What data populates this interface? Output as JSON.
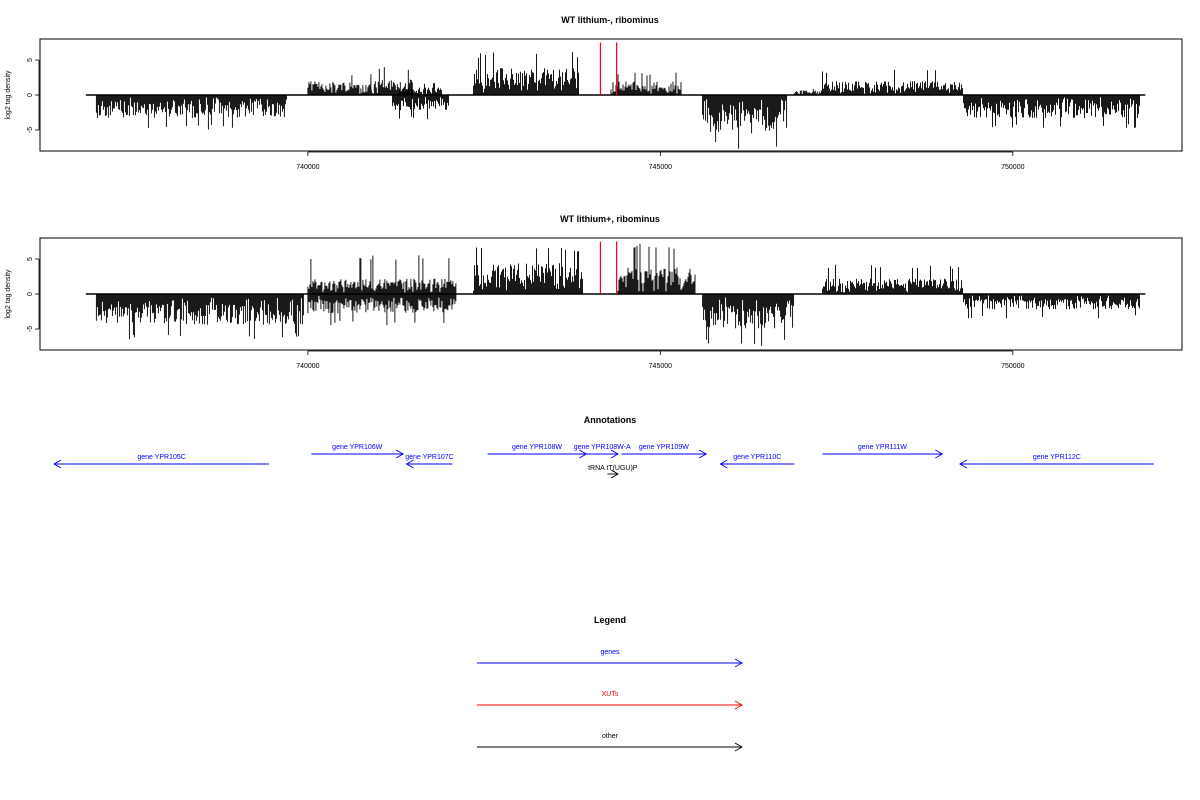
{
  "colors": {
    "gene": "#0000ff",
    "xut": "#ff0000",
    "other": "#000000",
    "signal": "#000000",
    "axis": "#000000"
  },
  "chart_data": [
    {
      "type": "bar",
      "title": "WT lithium-, ribominus",
      "ylabel": "log2 tag density",
      "xlim": [
        736200,
        752400
      ],
      "ylim": [
        -8,
        8
      ],
      "x_ticks": [
        740000,
        745000,
        750000
      ],
      "y_ticks": [
        -5,
        0,
        5
      ],
      "grid": false,
      "note": "dense per-position stranded signal; positive = forward strand, negative = reverse strand",
      "segments": [
        {
          "start": 737000,
          "end": 739700,
          "strand": "minus",
          "typical": 3.0,
          "max": 5.0
        },
        {
          "start": 740000,
          "end": 740900,
          "strand": "plus",
          "typical": 1.8,
          "max": 3.2
        },
        {
          "start": 740900,
          "end": 741500,
          "strand": "plus",
          "typical": 2.0,
          "max": 4.2
        },
        {
          "start": 741200,
          "end": 742000,
          "strand": "minus",
          "typical": 2.0,
          "max": 3.5
        },
        {
          "start": 741300,
          "end": 741900,
          "strand": "plus",
          "typical": 1.0,
          "max": 1.8
        },
        {
          "start": 742350,
          "end": 743850,
          "strand": "plus",
          "typical": 3.5,
          "max": 6.2
        },
        {
          "start": 744300,
          "end": 745300,
          "strand": "plus",
          "typical": 1.8,
          "max": 3.2
        },
        {
          "start": 745600,
          "end": 746800,
          "strand": "minus",
          "typical": 5.0,
          "max": 7.8
        },
        {
          "start": 746900,
          "end": 747300,
          "strand": "plus",
          "typical": 0.6,
          "max": 1.0
        },
        {
          "start": 747300,
          "end": 749300,
          "strand": "plus",
          "typical": 1.8,
          "max": 3.6
        },
        {
          "start": 749300,
          "end": 751800,
          "strand": "minus",
          "typical": 3.0,
          "max": 4.8
        }
      ],
      "xut_marks": [
        744150,
        744380
      ],
      "xut_height": 7.5
    },
    {
      "type": "bar",
      "title": "WT lithium+, ribominus",
      "ylabel": "log2 tag density",
      "xlim": [
        736200,
        752400
      ],
      "ylim": [
        -8,
        8
      ],
      "x_ticks": [
        740000,
        745000,
        750000
      ],
      "y_ticks": [
        -5,
        0,
        5
      ],
      "grid": false,
      "note": "dense per-position stranded signal; positive = forward strand, negative = reverse strand",
      "segments": [
        {
          "start": 737000,
          "end": 739950,
          "strand": "minus",
          "typical": 4.0,
          "max": 6.5
        },
        {
          "start": 740000,
          "end": 742100,
          "strand": "plus",
          "typical": 2.0,
          "max": 5.8
        },
        {
          "start": 740000,
          "end": 742100,
          "strand": "minus",
          "typical": 2.5,
          "max": 4.5
        },
        {
          "start": 742350,
          "end": 743900,
          "strand": "plus",
          "typical": 4.0,
          "max": 6.8
        },
        {
          "start": 744400,
          "end": 745500,
          "strand": "plus",
          "typical": 3.5,
          "max": 7.2
        },
        {
          "start": 745600,
          "end": 746900,
          "strand": "minus",
          "typical": 4.5,
          "max": 7.5
        },
        {
          "start": 747300,
          "end": 749300,
          "strand": "plus",
          "typical": 2.0,
          "max": 4.2
        },
        {
          "start": 749300,
          "end": 751800,
          "strand": "minus",
          "typical": 2.0,
          "max": 3.5
        }
      ],
      "xut_marks": [
        744150,
        744380
      ],
      "xut_height": 7.5
    }
  ],
  "annotations": {
    "title": "Annotations",
    "features": [
      {
        "label": "gene YPR105C",
        "kind": "gene",
        "start": 736400,
        "end": 739450,
        "strand": "minus",
        "row": 1
      },
      {
        "label": "gene YPR106W",
        "kind": "gene",
        "start": 740050,
        "end": 741350,
        "strand": "plus",
        "row": 0
      },
      {
        "label": "gene YPR107C",
        "kind": "gene",
        "start": 741400,
        "end": 742050,
        "strand": "minus",
        "row": 1
      },
      {
        "label": "gene YPR108W",
        "kind": "gene",
        "start": 742550,
        "end": 743950,
        "strand": "plus",
        "row": 0
      },
      {
        "label": "gene YPR108W-A",
        "kind": "gene",
        "start": 743950,
        "end": 744400,
        "strand": "plus",
        "row": 0
      },
      {
        "label": "tRNA tT(UGU)P",
        "kind": "other",
        "start": 744250,
        "end": 744400,
        "strand": "plus",
        "row": 2
      },
      {
        "label": "gene YPR109W",
        "kind": "gene",
        "start": 744450,
        "end": 745650,
        "strand": "plus",
        "row": 0
      },
      {
        "label": "gene YPR110C",
        "kind": "gene",
        "start": 745850,
        "end": 746900,
        "strand": "minus",
        "row": 1
      },
      {
        "label": "gene YPR111W",
        "kind": "gene",
        "start": 747300,
        "end": 749000,
        "strand": "plus",
        "row": 0
      },
      {
        "label": "gene YPR112C",
        "kind": "gene",
        "start": 749250,
        "end": 752000,
        "strand": "minus",
        "row": 1
      }
    ]
  },
  "legend": {
    "title": "Legend",
    "items": [
      {
        "label": "genes",
        "color": "#0000ff"
      },
      {
        "label": "XUTs",
        "color": "#ff0000"
      },
      {
        "label": "other",
        "color": "#000000"
      }
    ]
  }
}
